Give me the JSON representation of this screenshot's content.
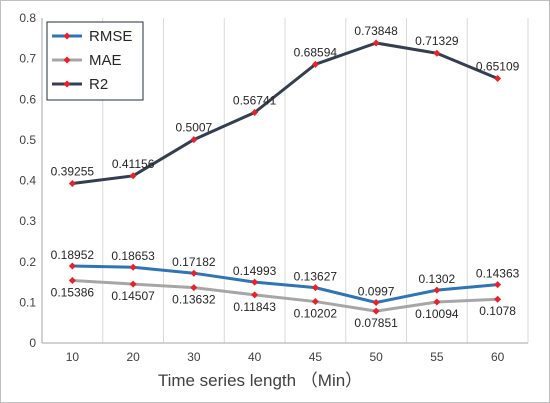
{
  "chart_data": {
    "type": "line",
    "title": "",
    "xlabel": "Time series length （Min）",
    "ylabel": "",
    "ylim": [
      0,
      0.8
    ],
    "yticks": [
      "0",
      "0.1",
      "0.2",
      "0.3",
      "0.4",
      "0.5",
      "0.6",
      "0.7",
      "0.8"
    ],
    "categories": [
      "10",
      "20",
      "30",
      "40",
      "45",
      "50",
      "55",
      "60"
    ],
    "legend_position": "top-left",
    "grid": "vertical",
    "series": [
      {
        "name": "RMSE",
        "color": "#2e75b6",
        "values": [
          0.18952,
          0.18653,
          0.17182,
          0.14993,
          0.13627,
          0.0997,
          0.1302,
          0.14363
        ],
        "labels": [
          "0.18952",
          "0.18653",
          "0.17182",
          "0.14993",
          "0.13627",
          "0.0997",
          "0.1302",
          "0.14363"
        ]
      },
      {
        "name": "MAE",
        "color": "#a6a6a6",
        "values": [
          0.15386,
          0.14507,
          0.13632,
          0.11843,
          0.10202,
          0.07851,
          0.10094,
          0.1078
        ],
        "labels": [
          "0.15386",
          "0.14507",
          "0.13632",
          "0.11843",
          "0.10202",
          "0.07851",
          "0.10094",
          "0.1078"
        ]
      },
      {
        "name": "R2",
        "color": "#333f50",
        "values": [
          0.39255,
          0.41156,
          0.5007,
          0.56741,
          0.68594,
          0.73848,
          0.71329,
          0.65109
        ],
        "labels": [
          "0.39255",
          "0.41156",
          "0.5007",
          "0.56741",
          "0.68594",
          "0.73848",
          "0.71329",
          "0.65109"
        ]
      }
    ],
    "marker_color": "#e8212a"
  }
}
